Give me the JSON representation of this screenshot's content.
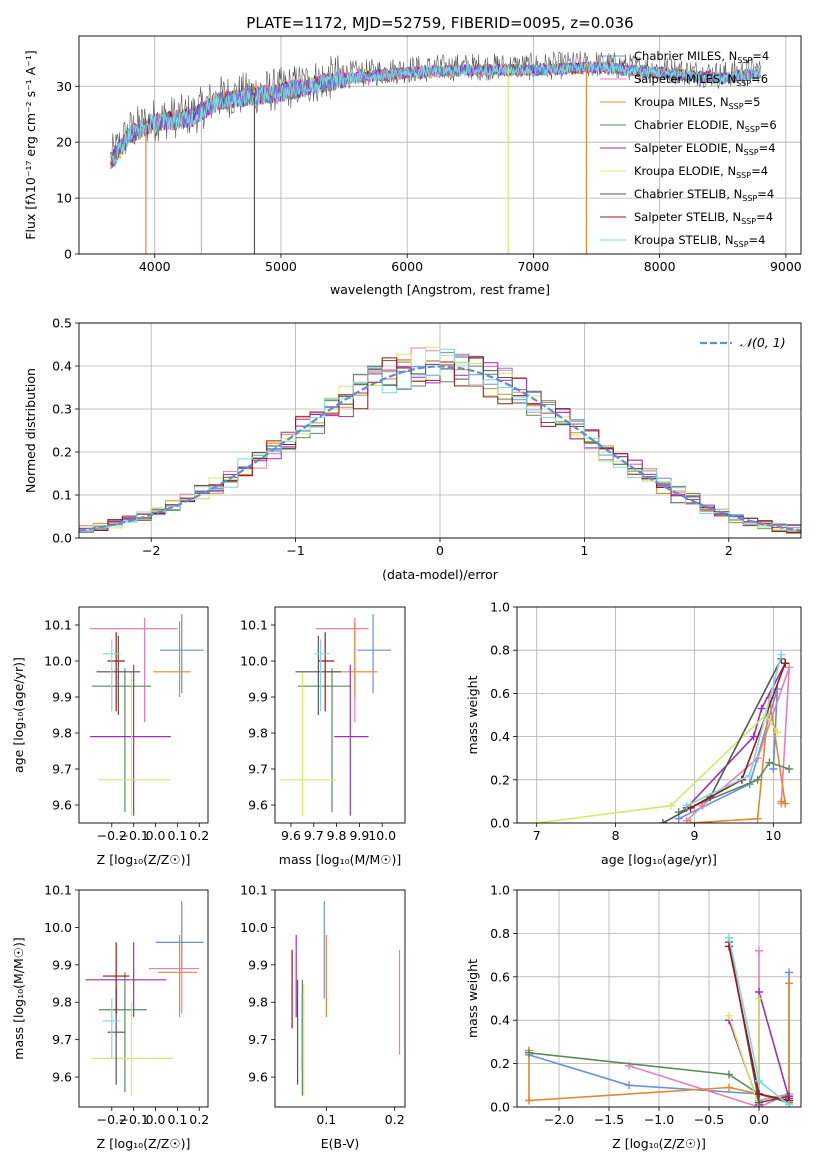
{
  "colors": {
    "Chabrier MILES": "#6a8fdc",
    "Salpeter MILES": "#e87fb4",
    "Kroupa MILES": "#e08a2f",
    "Chabrier ELODIE": "#5d8a62",
    "Salpeter ELODIE": "#9b2fc0",
    "Kroupa ELODIE": "#d6e86a",
    "Chabrier STELIB": "#555555",
    "Salpeter STELIB": "#a01616",
    "Kroupa STELIB": "#7fd8dc"
  },
  "chart_data": [
    {
      "id": "spectrum",
      "type": "line",
      "title": "PLATE=1172, MJD=52759, FIBERID=0095, z=0.036",
      "xlabel": "wavelength [Angstrom, rest frame]",
      "ylabel": "Flux [fλ10⁻¹⁷ erg cm⁻² s⁻¹ A⁻¹]",
      "xlim": [
        3400,
        9120
      ],
      "ylim": [
        0,
        39
      ],
      "xticks": [
        4000,
        5000,
        6000,
        7000,
        8000,
        9000
      ],
      "yticks": [
        0,
        10,
        20,
        30
      ],
      "grid": true,
      "legend_position": "top-right",
      "series": [
        {
          "name": "Chabrier MILES, N",
          "sub": "SSP",
          "suffix": "=4"
        },
        {
          "name": "Salpeter MILES, N",
          "sub": "SSP",
          "suffix": "=6"
        },
        {
          "name": "Kroupa MILES, N",
          "sub": "SSP",
          "suffix": "=5"
        },
        {
          "name": "Chabrier ELODIE, N",
          "sub": "SSP",
          "suffix": "=6"
        },
        {
          "name": "Salpeter ELODIE, N",
          "sub": "SSP",
          "suffix": "=4"
        },
        {
          "name": "Kroupa ELODIE, N",
          "sub": "SSP",
          "suffix": "=4"
        },
        {
          "name": "Chabrier STELIB, N",
          "sub": "SSP",
          "suffix": "=4"
        },
        {
          "name": "Salpeter STELIB, N",
          "sub": "SSP",
          "suffix": "=4"
        },
        {
          "name": "Kroupa STELIB, N",
          "sub": "SSP",
          "suffix": "=4"
        }
      ],
      "continuum": {
        "x": [
          3650,
          3800,
          4000,
          4300,
          4500,
          5000,
          5500,
          6000,
          6500,
          7000,
          7500,
          8000,
          8500,
          8800
        ],
        "y": [
          17,
          22,
          24,
          25,
          28,
          29.5,
          32,
          33,
          33.5,
          33.5,
          34,
          33,
          32,
          33
        ]
      },
      "dips": [
        {
          "x": 3930,
          "y": 0,
          "series": "Kroupa MILES"
        },
        {
          "x": 4370,
          "y": 0,
          "series": "Kroupa STELIB"
        },
        {
          "x": 4790,
          "y": 0,
          "series": "Chabrier STELIB"
        },
        {
          "x": 6800,
          "y": 0,
          "series": "Kroupa ELODIE"
        },
        {
          "x": 7420,
          "y": 0,
          "series": "Kroupa MILES"
        }
      ]
    },
    {
      "id": "residuals",
      "type": "histogram",
      "xlabel": "(data-model)/error",
      "ylabel": "Normed distribution",
      "xlim": [
        -2.5,
        2.5
      ],
      "ylim": [
        0,
        0.5
      ],
      "xticks": [
        -2,
        -1,
        0,
        1,
        2
      ],
      "yticks": [
        0.0,
        0.1,
        0.2,
        0.3,
        0.4,
        0.5
      ],
      "grid": true,
      "legend_position": "top-right",
      "reference_curve": {
        "name": "𝒩(0, 1)",
        "mean": 0,
        "sigma": 1
      },
      "bin_width": 0.1
    },
    {
      "id": "age-vs-Z",
      "type": "scatter_errorbar",
      "xlabel": "Z [log₁₀(Z/Z☉)]",
      "ylabel": "age  [log₁₀(age/yr)]",
      "xlim": [
        -0.35,
        0.24
      ],
      "ylim": [
        9.55,
        10.15
      ],
      "xticks": [
        -0.2,
        -0.1,
        0.0,
        0.1,
        0.2
      ],
      "yticks": [
        9.6,
        9.7,
        9.8,
        9.9,
        10.0,
        10.1
      ],
      "points": [
        {
          "series": "Chabrier MILES",
          "x": 0.12,
          "xerr": [
            0.1,
            0.1
          ],
          "y": 10.03,
          "yerr": [
            0.12,
            0.1
          ]
        },
        {
          "series": "Salpeter MILES",
          "x": -0.05,
          "xerr": [
            0.25,
            0.15
          ],
          "y": 10.09,
          "yerr": [
            0.26,
            0.03
          ]
        },
        {
          "series": "Kroupa MILES",
          "x": 0.11,
          "xerr": [
            0.12,
            0.05
          ],
          "y": 9.97,
          "yerr": [
            0.07,
            0.14
          ]
        },
        {
          "series": "Chabrier ELODIE",
          "x": -0.14,
          "xerr": [
            0.15,
            0.12
          ],
          "y": 9.93,
          "yerr": [
            0.35,
            0.05
          ]
        },
        {
          "series": "Salpeter ELODIE",
          "x": -0.1,
          "xerr": [
            0.2,
            0.17
          ],
          "y": 9.79,
          "yerr": [
            0.22,
            0.2
          ]
        },
        {
          "series": "Kroupa ELODIE",
          "x": -0.11,
          "xerr": [
            0.15,
            0.18
          ],
          "y": 9.67,
          "yerr": [
            0.1,
            0.3
          ]
        },
        {
          "series": "Chabrier STELIB",
          "x": -0.17,
          "xerr": [
            0.1,
            0.1
          ],
          "y": 9.97,
          "yerr": [
            0.12,
            0.1
          ]
        },
        {
          "series": "Salpeter STELIB",
          "x": -0.18,
          "xerr": [
            0.04,
            0.04
          ],
          "y": 10.0,
          "yerr": [
            0.14,
            0.08
          ]
        },
        {
          "series": "Kroupa STELIB",
          "x": -0.2,
          "xerr": [
            0.04,
            0.04
          ],
          "y": 10.02,
          "yerr": [
            0.16,
            0.04
          ]
        }
      ]
    },
    {
      "id": "age-vs-mass",
      "type": "scatter_errorbar",
      "xlabel": "mass [log₁₀(M/M☉)]",
      "ylabel": "",
      "xlim": [
        9.53,
        10.1
      ],
      "ylim": [
        9.55,
        10.15
      ],
      "xticks": [
        9.6,
        9.7,
        9.8,
        9.9,
        10.0
      ],
      "yticks": [
        9.6,
        9.7,
        9.8,
        9.9,
        10.0,
        10.1
      ],
      "points": [
        {
          "series": "Chabrier MILES",
          "x": 9.96,
          "xerr": [
            0.07,
            0.08
          ],
          "y": 10.03,
          "yerr": [
            0.12,
            0.1
          ]
        },
        {
          "series": "Salpeter MILES",
          "x": 9.88,
          "xerr": [
            0.17,
            0.06
          ],
          "y": 10.09,
          "yerr": [
            0.26,
            0.03
          ]
        },
        {
          "series": "Kroupa MILES",
          "x": 9.88,
          "xerr": [
            0.12,
            0.1
          ],
          "y": 9.97,
          "yerr": [
            0.07,
            0.14
          ]
        },
        {
          "series": "Chabrier ELODIE",
          "x": 9.78,
          "xerr": [
            0.15,
            0.08
          ],
          "y": 9.93,
          "yerr": [
            0.35,
            0.05
          ]
        },
        {
          "series": "Salpeter ELODIE",
          "x": 9.86,
          "xerr": [
            0.07,
            0.08
          ],
          "y": 9.79,
          "yerr": [
            0.22,
            0.2
          ]
        },
        {
          "series": "Kroupa ELODIE",
          "x": 9.65,
          "xerr": [
            0.1,
            0.15
          ],
          "y": 9.67,
          "yerr": [
            0.1,
            0.3
          ]
        },
        {
          "series": "Chabrier STELIB",
          "x": 9.72,
          "xerr": [
            0.1,
            0.1
          ],
          "y": 9.97,
          "yerr": [
            0.12,
            0.1
          ]
        },
        {
          "series": "Salpeter STELIB",
          "x": 9.75,
          "xerr": [
            0.03,
            0.04
          ],
          "y": 10.0,
          "yerr": [
            0.14,
            0.08
          ]
        },
        {
          "series": "Kroupa STELIB",
          "x": 9.73,
          "xerr": [
            0.03,
            0.04
          ],
          "y": 10.02,
          "yerr": [
            0.16,
            0.04
          ]
        }
      ]
    },
    {
      "id": "weights-vs-age",
      "type": "line",
      "xlabel": "age  [log₁₀(age/yr)]",
      "ylabel": "mass weight",
      "xlim": [
        6.75,
        10.35
      ],
      "ylim": [
        0,
        1.0
      ],
      "xticks": [
        7,
        8,
        9,
        10
      ],
      "yticks": [
        0.0,
        0.2,
        0.4,
        0.6,
        0.8,
        1.0
      ],
      "grid": true,
      "series": [
        {
          "name": "Chabrier MILES",
          "x": [
            8.8,
            9.7,
            10.05,
            10.0
          ],
          "y": [
            0.02,
            0.18,
            0.62,
            0.25
          ]
        },
        {
          "name": "Salpeter MILES",
          "x": [
            8.9,
            9.1,
            9.8,
            10.2,
            10.1
          ],
          "y": [
            0.01,
            0.08,
            0.3,
            0.72,
            0.09
          ]
        },
        {
          "name": "Kroupa MILES",
          "x": [
            8.95,
            9.8,
            9.95,
            10.15,
            10.1
          ],
          "y": [
            0.0,
            0.02,
            0.58,
            0.09,
            0.1
          ]
        },
        {
          "name": "Chabrier ELODIE",
          "x": [
            8.8,
            9.8,
            9.95,
            10.2
          ],
          "y": [
            0.05,
            0.2,
            0.28,
            0.25
          ]
        },
        {
          "name": "Salpeter ELODIE",
          "x": [
            8.9,
            9.75,
            9.85,
            10.15
          ],
          "y": [
            0.07,
            0.4,
            0.53,
            0.74
          ]
        },
        {
          "name": "Kroupa ELODIE",
          "x": [
            7.0,
            8.7,
            9.9,
            10.05
          ],
          "y": [
            0.0,
            0.08,
            0.5,
            0.42
          ]
        },
        {
          "name": "Chabrier STELIB",
          "x": [
            8.6,
            9.2,
            10.1
          ],
          "y": [
            0.0,
            0.12,
            0.76
          ]
        },
        {
          "name": "Salpeter STELIB",
          "x": [
            8.95,
            9.6,
            10.15
          ],
          "y": [
            0.07,
            0.2,
            0.74
          ]
        },
        {
          "name": "Kroupa STELIB",
          "x": [
            8.9,
            9.7,
            10.1
          ],
          "y": [
            0.08,
            0.22,
            0.78
          ]
        }
      ]
    },
    {
      "id": "mass-vs-Z",
      "type": "scatter_errorbar",
      "xlabel": "Z [log₁₀(Z/Z☉)]",
      "ylabel": "mass [log₁₀(M/M☉)]",
      "xlim": [
        -0.35,
        0.24
      ],
      "ylim": [
        9.52,
        10.1
      ],
      "xticks": [
        -0.2,
        -0.1,
        0.0,
        0.1,
        0.2
      ],
      "yticks": [
        9.6,
        9.7,
        9.8,
        9.9,
        10.0,
        10.1
      ],
      "points": [
        {
          "series": "Chabrier MILES",
          "x": 0.12,
          "xerr": [
            0.12,
            0.1
          ],
          "y": 9.96,
          "yerr": [
            0.07,
            0.11
          ]
        },
        {
          "series": "Salpeter MILES",
          "x": 0.12,
          "xerr": [
            0.15,
            0.08
          ],
          "y": 9.89,
          "yerr": [
            0.12,
            0.06
          ]
        },
        {
          "series": "Kroupa MILES",
          "x": 0.11,
          "xerr": [
            0.1,
            0.08
          ],
          "y": 9.88,
          "yerr": [
            0.12,
            0.1
          ]
        },
        {
          "series": "Chabrier ELODIE",
          "x": -0.14,
          "xerr": [
            0.12,
            0.1
          ],
          "y": 9.78,
          "yerr": [
            0.22,
            0.1
          ]
        },
        {
          "series": "Salpeter ELODIE",
          "x": -0.1,
          "xerr": [
            0.22,
            0.15
          ],
          "y": 9.86,
          "yerr": [
            0.1,
            0.1
          ]
        },
        {
          "series": "Kroupa ELODIE",
          "x": -0.11,
          "xerr": [
            0.18,
            0.19
          ],
          "y": 9.65,
          "yerr": [
            0.1,
            0.15
          ]
        },
        {
          "series": "Chabrier STELIB",
          "x": -0.18,
          "xerr": [
            0.04,
            0.04
          ],
          "y": 9.72,
          "yerr": [
            0.14,
            0.12
          ]
        },
        {
          "series": "Salpeter STELIB",
          "x": -0.18,
          "xerr": [
            0.06,
            0.06
          ],
          "y": 9.87,
          "yerr": [
            0.1,
            0.09
          ]
        },
        {
          "series": "Kroupa STELIB",
          "x": -0.2,
          "xerr": [
            0.04,
            0.04
          ],
          "y": 9.75,
          "yerr": [
            0.1,
            0.06
          ]
        }
      ]
    },
    {
      "id": "mass-vs-EBV",
      "type": "scatter_errorbar",
      "xlabel": "E(B-V)",
      "ylabel": "",
      "xlim": [
        0.025,
        0.215
      ],
      "ylim": [
        9.52,
        10.1
      ],
      "xticks": [
        0.1,
        0.2
      ],
      "yticks": [
        9.6,
        9.7,
        9.8,
        9.9,
        10.0,
        10.1
      ],
      "points": [
        {
          "series": "Chabrier MILES",
          "x": 0.097,
          "y": 9.94,
          "yerr": [
            0.13,
            0.13
          ]
        },
        {
          "series": "Salpeter MILES",
          "x": 0.207,
          "y": 9.8,
          "yerr": [
            0.14,
            0.14
          ]
        },
        {
          "series": "Kroupa MILES",
          "x": 0.1,
          "y": 9.88,
          "yerr": [
            0.12,
            0.1
          ]
        },
        {
          "series": "Chabrier ELODIE",
          "x": 0.065,
          "y": 9.76,
          "yerr": [
            0.21,
            0.1
          ]
        },
        {
          "series": "Salpeter ELODIE",
          "x": 0.056,
          "y": 9.86,
          "yerr": [
            0.1,
            0.12
          ]
        },
        {
          "series": "Kroupa ELODIE",
          "x": 0.067,
          "y": 9.7,
          "yerr": [
            0.15,
            0.15
          ]
        },
        {
          "series": "Chabrier STELIB",
          "x": 0.058,
          "y": 9.74,
          "yerr": [
            0.16,
            0.12
          ]
        },
        {
          "series": "Salpeter STELIB",
          "x": 0.05,
          "y": 9.85,
          "yerr": [
            0.12,
            0.09
          ]
        },
        {
          "series": "Kroupa STELIB",
          "x": 0.064,
          "y": 9.72,
          "yerr": [
            0.1,
            0.1
          ]
        }
      ]
    },
    {
      "id": "weights-vs-Z",
      "type": "line",
      "xlabel": "Z [log₁₀(Z/Z☉)]",
      "ylabel": "mass weight",
      "xlim": [
        -2.42,
        0.42
      ],
      "ylim": [
        0,
        1.0
      ],
      "xticks": [
        -2.0,
        -1.5,
        -1.0,
        -0.5,
        0.0
      ],
      "yticks": [
        0.0,
        0.2,
        0.4,
        0.6,
        0.8,
        1.0
      ],
      "grid": true,
      "series": [
        {
          "name": "Chabrier MILES",
          "x": [
            -2.3,
            -1.3,
            0.0,
            0.3,
            0.3
          ],
          "y": [
            0.24,
            0.1,
            0.06,
            0.02,
            0.62
          ]
        },
        {
          "name": "Salpeter MILES",
          "x": [
            -1.3,
            0.0,
            0.3,
            0.0,
            0.0
          ],
          "y": [
            0.19,
            0.0,
            0.06,
            0.03,
            0.72
          ]
        },
        {
          "name": "Kroupa MILES",
          "x": [
            -2.3,
            -2.3,
            -0.3,
            0.3,
            0.3
          ],
          "y": [
            0.26,
            0.03,
            0.09,
            0.03,
            0.57
          ]
        },
        {
          "name": "Chabrier ELODIE",
          "x": [
            -2.3,
            -0.3,
            0.0,
            0.3
          ],
          "y": [
            0.25,
            0.15,
            0.06,
            0.02
          ]
        },
        {
          "name": "Salpeter ELODIE",
          "x": [
            -0.3,
            0.0,
            0.0,
            0.3
          ],
          "y": [
            0.4,
            0.01,
            0.53,
            0.04
          ]
        },
        {
          "name": "Kroupa ELODIE",
          "x": [
            -0.3,
            0.0,
            0.0
          ],
          "y": [
            0.42,
            0.0,
            0.5
          ]
        },
        {
          "name": "Chabrier STELIB",
          "x": [
            -0.3,
            0.0,
            0.3
          ],
          "y": [
            0.76,
            0.02,
            0.05
          ]
        },
        {
          "name": "Salpeter STELIB",
          "x": [
            -0.3,
            0.0,
            0.3
          ],
          "y": [
            0.74,
            0.06,
            0.03
          ]
        },
        {
          "name": "Kroupa STELIB",
          "x": [
            -0.3,
            0.0,
            0.3
          ],
          "y": [
            0.78,
            0.12,
            0.01
          ]
        }
      ]
    }
  ]
}
